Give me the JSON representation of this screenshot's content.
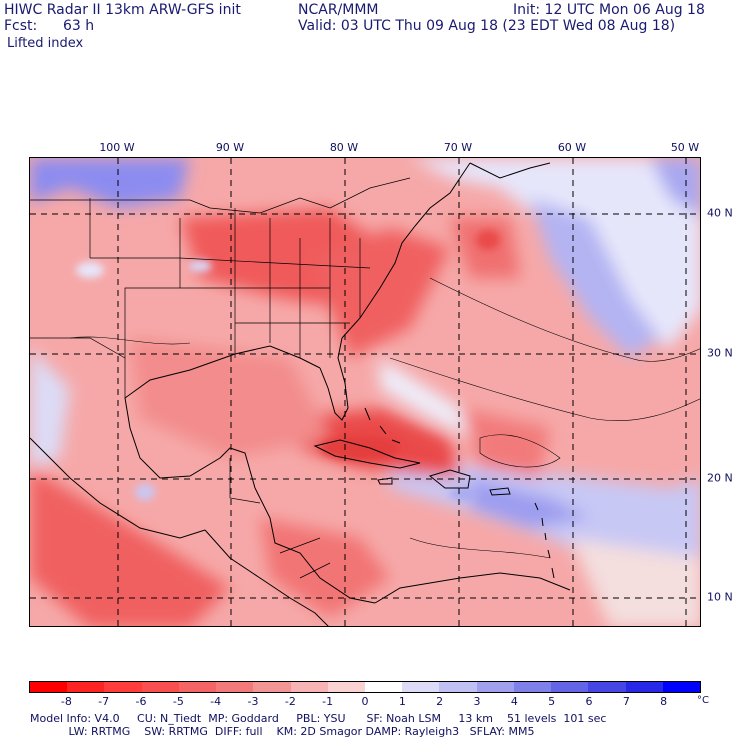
{
  "header": {
    "model": "HIWC Radar II 13km ARW-GFS init",
    "org": "NCAR/MMM",
    "init": "Init: 12 UTC Mon 06 Aug 18",
    "fcst_label": "Fcst:",
    "fcst_value": "63 h",
    "valid": "Valid: 03 UTC Thu 09 Aug 18 (23 EDT Wed 08 Aug 18)",
    "field": "Lifted index"
  },
  "map": {
    "longitude_labels": [
      "100 W",
      "90 W",
      "80 W",
      "70 W",
      "60 W",
      "50 W"
    ],
    "latitude_labels": [
      "40 N",
      "30 N",
      "20 N",
      "10 N"
    ]
  },
  "colorbar": {
    "tick_labels": [
      "-8",
      "-7",
      "-6",
      "-5",
      "-4",
      "-3",
      "-2",
      "-1",
      "0",
      "1",
      "2",
      "3",
      "4",
      "5",
      "6",
      "7",
      "8"
    ],
    "unit": "°C",
    "colors": [
      "#ff0000",
      "#ff2424",
      "#ff3d3d",
      "#fa4f4f",
      "#f56565",
      "#f27a7a",
      "#f49595",
      "#f8b4b4",
      "#fbd2d2",
      "#ffffff",
      "#dcdcf8",
      "#c0c0f3",
      "#a0a0ef",
      "#8080ea",
      "#6464e6",
      "#4646e4",
      "#2828e8",
      "#0000ff"
    ]
  },
  "model_info": {
    "line1": "Model Info: V4.0     CU: N_Tiedt  MP: Goddard     PBL: YSU      SF: Noah LSM     13 km    51 levels  101 sec",
    "line2": "           LW: RRTMG    SW: RRTMG  DIFF: full    KM: 2D Smagor DAMP: Rayleigh3   SFLAY: MM5"
  }
}
